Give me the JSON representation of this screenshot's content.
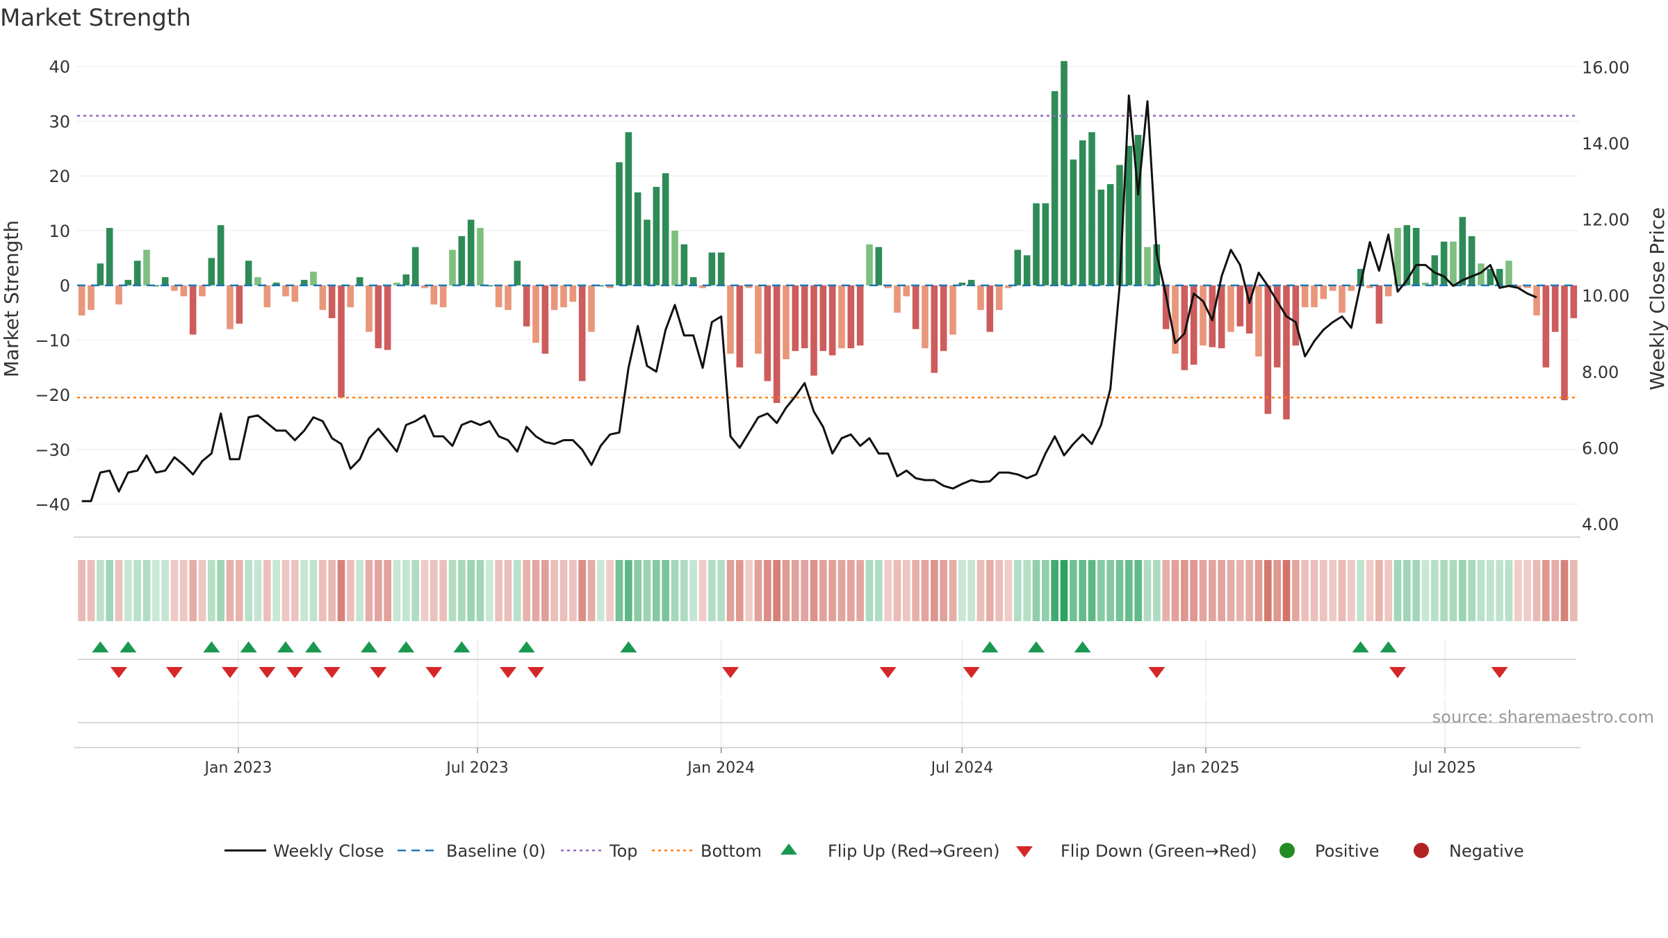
{
  "chart_data": {
    "type": "bar",
    "title": "Market Strength",
    "source": "source: sharemaestro.com",
    "ylabel": "Market Strength",
    "y2label": "Weekly Close Price",
    "ylim": [
      -45,
      42
    ],
    "y2lim": [
      3.8,
      16.3
    ],
    "yticks": [
      -40,
      -30,
      -20,
      -10,
      0,
      10,
      20,
      30,
      40
    ],
    "yticks_labels": [
      "−40",
      "−30",
      "−20",
      "−10",
      "0",
      "10",
      "20",
      "30",
      "40"
    ],
    "y2ticks": [
      4.0,
      6.0,
      8.0,
      10.0,
      12.0,
      14.0,
      16.0
    ],
    "y2ticks_labels": [
      "4.00",
      "6.00",
      "8.00",
      "10.00",
      "12.00",
      "14.00",
      "16.00"
    ],
    "x_start": "2022-09-09",
    "x_step_days": 7,
    "xticks": [
      {
        "week": 16.9,
        "label": "Jan 2023"
      },
      {
        "week": 42.7,
        "label": "Jul 2023"
      },
      {
        "week": 69.0,
        "label": "Jan 2024"
      },
      {
        "week": 95.0,
        "label": "Jul 2024"
      },
      {
        "week": 121.3,
        "label": "Jan 2025"
      },
      {
        "week": 147.1,
        "label": "Jul 2025"
      }
    ],
    "top_line": 31,
    "bottom_line": -20.5,
    "baseline": 0,
    "strength": [
      -5.5,
      -4.5,
      4,
      10.5,
      -3.5,
      1,
      4.5,
      6.5,
      0,
      1.5,
      -1,
      -2,
      -9,
      -2,
      5,
      11,
      -8,
      -7,
      4.5,
      1.5,
      -4,
      0.5,
      -2,
      -3,
      1,
      2.5,
      -4.5,
      -6,
      -20.5,
      -4,
      1.5,
      -8.5,
      -11.5,
      -11.8,
      0.5,
      2,
      7,
      -0.5,
      -3.5,
      -4,
      6.5,
      9,
      12,
      10.5,
      0,
      -4,
      -4.5,
      4.5,
      -7.5,
      -10.5,
      -12.5,
      -4.5,
      -4,
      -3,
      -17.5,
      -8.5,
      0,
      -0.5,
      22.5,
      28,
      17,
      12,
      18,
      20.5,
      10,
      7.5,
      1.5,
      -0.5,
      6,
      6,
      -12.5,
      -15,
      -0.5,
      -12.5,
      -17.5,
      -21.5,
      -13.5,
      -12,
      -11.5,
      -16.5,
      -12,
      -12.8,
      -11.5,
      -11.5,
      -11,
      7.5,
      7,
      -0.5,
      -5,
      -2,
      -8,
      -11.5,
      -16,
      -12,
      -9,
      0.5,
      1,
      -4.5,
      -8.5,
      -4.5,
      -0.5,
      6.5,
      5.5,
      15,
      15,
      35.5,
      41,
      23,
      26.5,
      28,
      17.5,
      18.5,
      22,
      25.5,
      27.5,
      7,
      7.5,
      -8,
      -12.5,
      -15.5,
      -14.5,
      -11,
      -11.3,
      -11.5,
      -8.5,
      -7.5,
      -8.8,
      -13,
      -23.5,
      -15,
      -24.5,
      -11,
      -4,
      -4,
      -2.5,
      -1,
      -5,
      -1,
      3,
      -0.5,
      -7,
      -2,
      10.5,
      11,
      10.5,
      0.5,
      5.5,
      8,
      8,
      12.5,
      9,
      4,
      3,
      3,
      4.5,
      -0.5,
      -0.5,
      -5.5,
      -15,
      -8.5,
      -21,
      -6
    ],
    "close": [
      4.6,
      4.6,
      5.35,
      5.4,
      4.85,
      5.35,
      5.4,
      5.8,
      5.35,
      5.4,
      5.75,
      5.55,
      5.3,
      5.65,
      5.85,
      6.9,
      5.7,
      5.7,
      6.8,
      6.85,
      6.65,
      6.45,
      6.45,
      6.2,
      6.45,
      6.8,
      6.7,
      6.25,
      6.1,
      5.45,
      5.7,
      6.25,
      6.5,
      6.2,
      5.9,
      6.6,
      6.7,
      6.85,
      6.3,
      6.3,
      6.05,
      6.6,
      6.7,
      6.6,
      6.7,
      6.3,
      6.2,
      5.9,
      6.55,
      6.3,
      6.15,
      6.1,
      6.2,
      6.2,
      5.95,
      5.55,
      6.05,
      6.35,
      6.4,
      8.1,
      9.2,
      8.15,
      8.0,
      9.1,
      9.75,
      8.95,
      8.95,
      8.1,
      9.3,
      9.45,
      6.3,
      6.0,
      6.4,
      6.8,
      6.9,
      6.65,
      7.05,
      7.35,
      7.7,
      6.95,
      6.55,
      5.85,
      6.25,
      6.35,
      6.05,
      6.25,
      5.85,
      5.85,
      5.25,
      5.4,
      5.2,
      5.15,
      5.15,
      5.0,
      4.93,
      5.05,
      5.15,
      5.1,
      5.12,
      5.35,
      5.35,
      5.3,
      5.2,
      5.3,
      5.85,
      6.3,
      5.8,
      6.1,
      6.35,
      6.1,
      6.6,
      7.55,
      10.25,
      15.25,
      12.65,
      15.1,
      11.1,
      10.0,
      8.75,
      9.0,
      10.05,
      9.85,
      9.35,
      10.5,
      11.2,
      10.8,
      9.8,
      10.6,
      10.25,
      9.85,
      9.45,
      9.3,
      8.4,
      8.8,
      9.1,
      9.3,
      9.45,
      9.15,
      10.3,
      11.4,
      10.65,
      11.6,
      10.1,
      10.4,
      10.8,
      10.8,
      10.6,
      10.5,
      10.25,
      10.4,
      10.5,
      10.6,
      10.8,
      10.2,
      10.25,
      10.2,
      10.05,
      9.95
    ],
    "flip_up_weeks": [
      2,
      5,
      14,
      18,
      22,
      25,
      31,
      35,
      41,
      48,
      59,
      98,
      103,
      108,
      138,
      141
    ],
    "flip_down_weeks": [
      4,
      10,
      16,
      20,
      23,
      27,
      32,
      38,
      46,
      49,
      70,
      87,
      96,
      116,
      142,
      153
    ],
    "legend": [
      {
        "type": "line",
        "label": "Weekly Close",
        "color": "#111111"
      },
      {
        "type": "dash",
        "label": "Baseline (0)",
        "color": "#1f77b4"
      },
      {
        "type": "dot",
        "label": "Top",
        "color": "#9467bd"
      },
      {
        "type": "dot",
        "label": "Bottom",
        "color": "#ff7f0e"
      },
      {
        "type": "up",
        "label": "Flip Up (Red→Green)",
        "color": "#1a9850"
      },
      {
        "type": "down",
        "label": "Flip Down (Green→Red)",
        "color": "#d62728"
      },
      {
        "type": "circle",
        "label": "Positive",
        "color": "#228b22"
      },
      {
        "type": "circle",
        "label": "Negative",
        "color": "#b22222"
      }
    ],
    "colors": {
      "pos_strong": "#2e8b57",
      "pos_weak": "#7fbf7f",
      "neg_strong": "#cd5c5c",
      "neg_weak": "#e9967a",
      "heat_pos": "#2ca25f",
      "heat_neg": "#c0392b",
      "line": "#111111",
      "top": "#9467bd",
      "bottom": "#ff7f0e",
      "baseline": "#1f77b4"
    }
  }
}
